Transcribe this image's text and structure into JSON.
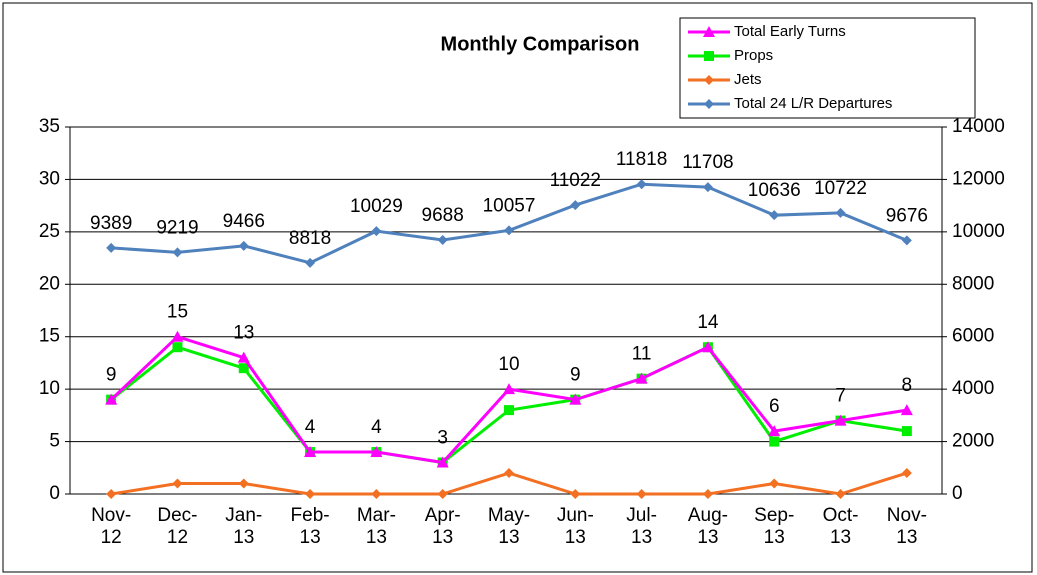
{
  "chart_data": {
    "type": "line",
    "title": "Monthly Comparison",
    "categories": [
      "Nov-12",
      "Dec-12",
      "Jan-13",
      "Feb-13",
      "Mar-13",
      "Apr-13",
      "May-13",
      "Jun-13",
      "Jul-13",
      "Aug-13",
      "Sep-13",
      "Oct-13",
      "Nov-13"
    ],
    "series": [
      {
        "name": "Total Early Turns",
        "color": "#ff00ff",
        "marker": "triangle",
        "data_labels": true,
        "values": [
          9,
          15,
          13,
          4,
          4,
          3,
          10,
          9,
          11,
          14,
          6,
          7,
          8
        ]
      },
      {
        "name": "Props",
        "color": "#00ee00",
        "marker": "square",
        "data_labels": false,
        "values": [
          9,
          14,
          12,
          4,
          4,
          3,
          8,
          9,
          11,
          14,
          5,
          7,
          6
        ]
      },
      {
        "name": "Jets",
        "color": "#f36f21",
        "marker": "diamond",
        "data_labels": false,
        "values": [
          0,
          1,
          1,
          0,
          0,
          0,
          2,
          0,
          0,
          0,
          1,
          0,
          2
        ]
      },
      {
        "name": "Total 24 L/R Departures",
        "color": "#4f81bd",
        "marker": "diamond",
        "data_labels": true,
        "axis": "y2",
        "values": [
          9389,
          9219,
          9466,
          8818,
          10029,
          9688,
          10057,
          11022,
          11818,
          11708,
          10636,
          10722,
          9676
        ]
      }
    ],
    "ylim": [
      0,
      35
    ],
    "yticks": [
      0,
      5,
      10,
      15,
      20,
      25,
      30,
      35
    ],
    "y2lim": [
      0,
      14000
    ],
    "y2ticks": [
      0,
      2000,
      4000,
      6000,
      8000,
      10000,
      12000,
      14000
    ],
    "grid": true,
    "legend": "top-right"
  }
}
